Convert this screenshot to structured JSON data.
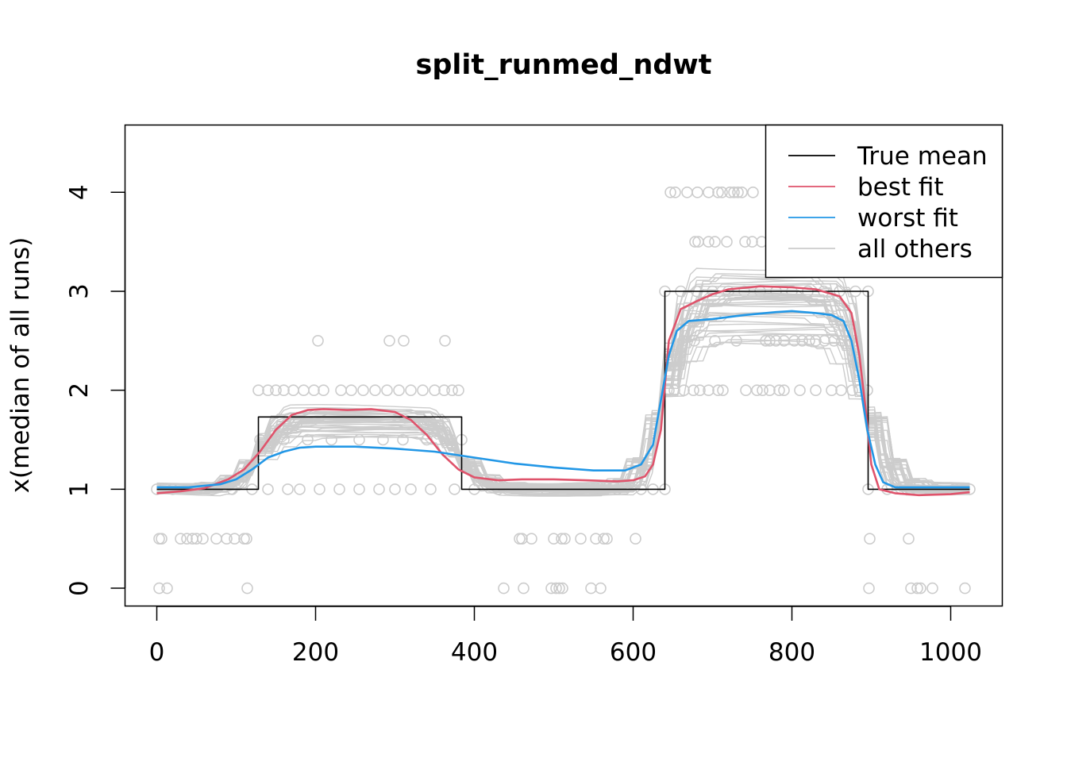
{
  "chart_data": {
    "type": "line",
    "title": "split_runmed_ndwt",
    "xlabel": "",
    "ylabel": "x(median of all runs)",
    "xlim": [
      -40,
      1065
    ],
    "ylim": [
      -0.18,
      4.68
    ],
    "x_ticks": [
      0,
      200,
      400,
      600,
      800,
      1000
    ],
    "y_ticks": [
      0,
      1,
      2,
      3,
      4
    ],
    "grid": false,
    "legend_position": "top-right",
    "legend": [
      {
        "label": "True mean",
        "color": "#000000"
      },
      {
        "label": "best fit",
        "color": "#DF536B"
      },
      {
        "label": "worst fit",
        "color": "#2297E6"
      },
      {
        "label": "all others",
        "color": "#CCCCCC"
      }
    ],
    "series": [
      {
        "name": "True mean",
        "color": "#000000",
        "step": true,
        "x": [
          0,
          128,
          128,
          384,
          384,
          640,
          640,
          896,
          896,
          1024
        ],
        "y": [
          1,
          1,
          1.73,
          1.73,
          1,
          1,
          3,
          3,
          1,
          1
        ]
      },
      {
        "name": "best fit",
        "color": "#DF536B",
        "x": [
          0,
          30,
          60,
          90,
          110,
          130,
          150,
          170,
          190,
          210,
          240,
          270,
          300,
          320,
          340,
          360,
          380,
          400,
          430,
          460,
          500,
          540,
          580,
          600,
          615,
          625,
          635,
          645,
          660,
          680,
          700,
          720,
          760,
          800,
          830,
          860,
          875,
          885,
          893,
          900,
          910,
          930,
          960,
          1000,
          1024
        ],
        "y": [
          0.96,
          0.98,
          1.01,
          1.1,
          1.2,
          1.38,
          1.6,
          1.75,
          1.8,
          1.81,
          1.8,
          1.81,
          1.78,
          1.7,
          1.55,
          1.35,
          1.2,
          1.12,
          1.09,
          1.1,
          1.1,
          1.09,
          1.08,
          1.09,
          1.13,
          1.25,
          1.6,
          2.5,
          2.82,
          2.9,
          2.97,
          3.02,
          3.05,
          3.04,
          3.02,
          2.95,
          2.78,
          2.35,
          1.8,
          1.25,
          1.0,
          0.96,
          0.94,
          0.95,
          0.97
        ]
      },
      {
        "name": "worst fit",
        "color": "#2297E6",
        "x": [
          0,
          40,
          80,
          100,
          120,
          140,
          160,
          180,
          200,
          250,
          300,
          350,
          400,
          450,
          500,
          550,
          590,
          610,
          625,
          635,
          645,
          655,
          670,
          700,
          740,
          780,
          800,
          830,
          850,
          865,
          875,
          885,
          895,
          905,
          915,
          930,
          960,
          1000,
          1024
        ],
        "y": [
          1.02,
          1.02,
          1.05,
          1.1,
          1.2,
          1.32,
          1.38,
          1.42,
          1.43,
          1.43,
          1.41,
          1.38,
          1.32,
          1.26,
          1.22,
          1.19,
          1.19,
          1.25,
          1.45,
          1.9,
          2.35,
          2.6,
          2.7,
          2.72,
          2.76,
          2.79,
          2.8,
          2.78,
          2.76,
          2.7,
          2.5,
          2.1,
          1.6,
          1.25,
          1.07,
          1.02,
          1.02,
          1.02,
          1.02
        ]
      }
    ],
    "other_runs": {
      "name": "all others",
      "color": "#CCCCCC",
      "count": 40
    },
    "observations": [
      {
        "x": 0,
        "y": 1
      },
      {
        "x": 3,
        "y": 0.5
      },
      {
        "x": 6,
        "y": 0.5
      },
      {
        "x": 3,
        "y": 0
      },
      {
        "x": 13,
        "y": 0
      },
      {
        "x": 30,
        "y": 0.5
      },
      {
        "x": 38,
        "y": 0.5
      },
      {
        "x": 45,
        "y": 0.5
      },
      {
        "x": 50,
        "y": 0.5
      },
      {
        "x": 58,
        "y": 0.5
      },
      {
        "x": 75,
        "y": 0.5
      },
      {
        "x": 88,
        "y": 0.5
      },
      {
        "x": 98,
        "y": 0.5
      },
      {
        "x": 110,
        "y": 0.5
      },
      {
        "x": 113,
        "y": 0.5
      },
      {
        "x": 114,
        "y": 0
      },
      {
        "x": 20,
        "y": 1
      },
      {
        "x": 45,
        "y": 1
      },
      {
        "x": 70,
        "y": 1
      },
      {
        "x": 95,
        "y": 1
      },
      {
        "x": 120,
        "y": 1
      },
      {
        "x": 128,
        "y": 2
      },
      {
        "x": 140,
        "y": 2
      },
      {
        "x": 150,
        "y": 2
      },
      {
        "x": 160,
        "y": 2
      },
      {
        "x": 172,
        "y": 2
      },
      {
        "x": 185,
        "y": 2
      },
      {
        "x": 198,
        "y": 2
      },
      {
        "x": 210,
        "y": 2
      },
      {
        "x": 232,
        "y": 2
      },
      {
        "x": 245,
        "y": 2
      },
      {
        "x": 260,
        "y": 2
      },
      {
        "x": 275,
        "y": 2
      },
      {
        "x": 290,
        "y": 2
      },
      {
        "x": 305,
        "y": 2
      },
      {
        "x": 320,
        "y": 2
      },
      {
        "x": 335,
        "y": 2
      },
      {
        "x": 350,
        "y": 2
      },
      {
        "x": 362,
        "y": 2
      },
      {
        "x": 372,
        "y": 2
      },
      {
        "x": 380,
        "y": 2
      },
      {
        "x": 130,
        "y": 1.5
      },
      {
        "x": 160,
        "y": 1.5
      },
      {
        "x": 190,
        "y": 1.5
      },
      {
        "x": 220,
        "y": 1.5
      },
      {
        "x": 255,
        "y": 1.5
      },
      {
        "x": 285,
        "y": 1.5
      },
      {
        "x": 310,
        "y": 1.5
      },
      {
        "x": 340,
        "y": 1.5
      },
      {
        "x": 370,
        "y": 1.5
      },
      {
        "x": 384,
        "y": 1.5
      },
      {
        "x": 140,
        "y": 1
      },
      {
        "x": 165,
        "y": 1
      },
      {
        "x": 180,
        "y": 1
      },
      {
        "x": 205,
        "y": 1
      },
      {
        "x": 230,
        "y": 1
      },
      {
        "x": 255,
        "y": 1
      },
      {
        "x": 280,
        "y": 1
      },
      {
        "x": 300,
        "y": 1
      },
      {
        "x": 320,
        "y": 1
      },
      {
        "x": 345,
        "y": 1
      },
      {
        "x": 375,
        "y": 1
      },
      {
        "x": 203,
        "y": 2.5
      },
      {
        "x": 293,
        "y": 2.5
      },
      {
        "x": 311,
        "y": 2.5
      },
      {
        "x": 363,
        "y": 2.5
      },
      {
        "x": 400,
        "y": 1
      },
      {
        "x": 430,
        "y": 1
      },
      {
        "x": 460,
        "y": 1
      },
      {
        "x": 490,
        "y": 1
      },
      {
        "x": 520,
        "y": 1
      },
      {
        "x": 550,
        "y": 1
      },
      {
        "x": 580,
        "y": 1
      },
      {
        "x": 610,
        "y": 1
      },
      {
        "x": 625,
        "y": 1
      },
      {
        "x": 640,
        "y": 1
      },
      {
        "x": 457,
        "y": 0.5
      },
      {
        "x": 460,
        "y": 0.5
      },
      {
        "x": 472,
        "y": 0.5
      },
      {
        "x": 500,
        "y": 0.5
      },
      {
        "x": 510,
        "y": 0.5
      },
      {
        "x": 514,
        "y": 0.5
      },
      {
        "x": 534,
        "y": 0.5
      },
      {
        "x": 553,
        "y": 0.5
      },
      {
        "x": 563,
        "y": 0.5
      },
      {
        "x": 567,
        "y": 0.5
      },
      {
        "x": 603,
        "y": 0.5
      },
      {
        "x": 437,
        "y": 0
      },
      {
        "x": 462,
        "y": 0
      },
      {
        "x": 497,
        "y": 0
      },
      {
        "x": 503,
        "y": 0
      },
      {
        "x": 507,
        "y": 0
      },
      {
        "x": 511,
        "y": 0
      },
      {
        "x": 547,
        "y": 0
      },
      {
        "x": 559,
        "y": 0
      },
      {
        "x": 640,
        "y": 3
      },
      {
        "x": 660,
        "y": 3
      },
      {
        "x": 680,
        "y": 3
      },
      {
        "x": 700,
        "y": 3
      },
      {
        "x": 720,
        "y": 3
      },
      {
        "x": 740,
        "y": 3
      },
      {
        "x": 760,
        "y": 3
      },
      {
        "x": 780,
        "y": 3
      },
      {
        "x": 800,
        "y": 3
      },
      {
        "x": 820,
        "y": 3
      },
      {
        "x": 840,
        "y": 3
      },
      {
        "x": 860,
        "y": 3
      },
      {
        "x": 880,
        "y": 3
      },
      {
        "x": 896,
        "y": 3
      },
      {
        "x": 647,
        "y": 4
      },
      {
        "x": 653,
        "y": 4
      },
      {
        "x": 668,
        "y": 4
      },
      {
        "x": 681,
        "y": 4
      },
      {
        "x": 695,
        "y": 4
      },
      {
        "x": 707,
        "y": 4
      },
      {
        "x": 712,
        "y": 4
      },
      {
        "x": 722,
        "y": 4
      },
      {
        "x": 727,
        "y": 4
      },
      {
        "x": 732,
        "y": 4
      },
      {
        "x": 737,
        "y": 4
      },
      {
        "x": 751,
        "y": 4
      },
      {
        "x": 678,
        "y": 3.5
      },
      {
        "x": 682,
        "y": 3.5
      },
      {
        "x": 695,
        "y": 3.5
      },
      {
        "x": 703,
        "y": 3.5
      },
      {
        "x": 718,
        "y": 3.5
      },
      {
        "x": 741,
        "y": 3.5
      },
      {
        "x": 750,
        "y": 3.5
      },
      {
        "x": 762,
        "y": 3.5
      },
      {
        "x": 663,
        "y": 2.5
      },
      {
        "x": 677,
        "y": 2.5
      },
      {
        "x": 703,
        "y": 2.5
      },
      {
        "x": 730,
        "y": 2.5
      },
      {
        "x": 767,
        "y": 2.5
      },
      {
        "x": 772,
        "y": 2.5
      },
      {
        "x": 780,
        "y": 2.5
      },
      {
        "x": 790,
        "y": 2.5
      },
      {
        "x": 803,
        "y": 2.5
      },
      {
        "x": 813,
        "y": 2.5
      },
      {
        "x": 822,
        "y": 2.5
      },
      {
        "x": 830,
        "y": 2.5
      },
      {
        "x": 841,
        "y": 2.5
      },
      {
        "x": 853,
        "y": 2.5
      },
      {
        "x": 863,
        "y": 2.5
      },
      {
        "x": 873,
        "y": 2.5
      },
      {
        "x": 880,
        "y": 2.5
      },
      {
        "x": 645,
        "y": 2
      },
      {
        "x": 652,
        "y": 2
      },
      {
        "x": 664,
        "y": 2
      },
      {
        "x": 676,
        "y": 2
      },
      {
        "x": 684,
        "y": 2
      },
      {
        "x": 695,
        "y": 2
      },
      {
        "x": 707,
        "y": 2
      },
      {
        "x": 713,
        "y": 2
      },
      {
        "x": 742,
        "y": 2
      },
      {
        "x": 756,
        "y": 2
      },
      {
        "x": 763,
        "y": 2
      },
      {
        "x": 772,
        "y": 2
      },
      {
        "x": 784,
        "y": 2
      },
      {
        "x": 790,
        "y": 2
      },
      {
        "x": 810,
        "y": 2
      },
      {
        "x": 830,
        "y": 2
      },
      {
        "x": 850,
        "y": 2
      },
      {
        "x": 862,
        "y": 2
      },
      {
        "x": 876,
        "y": 2
      },
      {
        "x": 885,
        "y": 2
      },
      {
        "x": 895,
        "y": 2
      },
      {
        "x": 896,
        "y": 1
      },
      {
        "x": 920,
        "y": 1
      },
      {
        "x": 950,
        "y": 1
      },
      {
        "x": 980,
        "y": 1
      },
      {
        "x": 1005,
        "y": 1
      },
      {
        "x": 1024,
        "y": 1
      },
      {
        "x": 898,
        "y": 0.5
      },
      {
        "x": 947,
        "y": 0.5
      },
      {
        "x": 897,
        "y": 0
      },
      {
        "x": 950,
        "y": 0
      },
      {
        "x": 958,
        "y": 0
      },
      {
        "x": 962,
        "y": 0
      },
      {
        "x": 977,
        "y": 0
      },
      {
        "x": 1018,
        "y": 0
      }
    ]
  }
}
